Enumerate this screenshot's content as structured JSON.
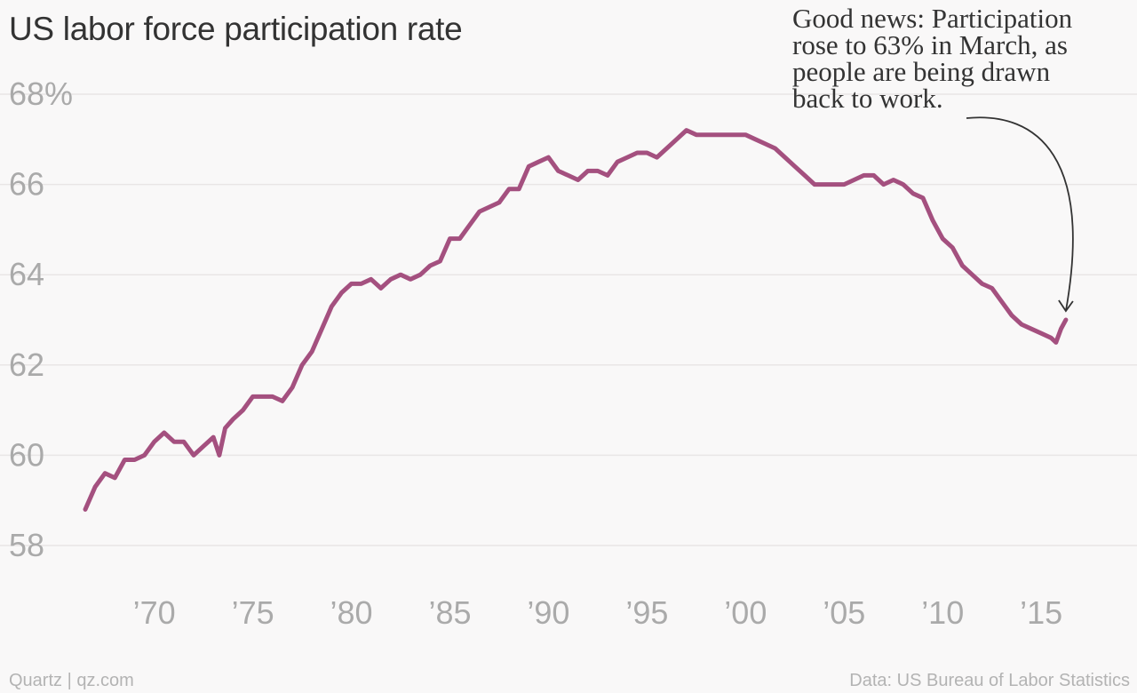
{
  "title": "US labor force participation rate",
  "annotation": {
    "lines": [
      "Good news: Participation",
      "rose to 63% in March, as",
      "people are being drawn",
      "back to work."
    ]
  },
  "footer": {
    "left": "Quartz | qz.com",
    "right": "Data: US Bureau of Labor Statistics"
  },
  "colors": {
    "line": "#a4507f",
    "grid": "#e9e6e6",
    "tick": "#aaaaaa",
    "text": "#333333",
    "footer": "#b3b3b3",
    "background": "#f9f8f8"
  },
  "chart_data": {
    "type": "line",
    "title": "US labor force participation rate",
    "xlabel": "",
    "ylabel": "",
    "xlim": [
      1966.5,
      2016.75
    ],
    "ylim": [
      58,
      68
    ],
    "grid": true,
    "y_ticks": [
      {
        "value": 68,
        "label": "68%"
      },
      {
        "value": 66,
        "label": "66"
      },
      {
        "value": 64,
        "label": "64"
      },
      {
        "value": 62,
        "label": "62"
      },
      {
        "value": 60,
        "label": "60"
      },
      {
        "value": 58,
        "label": "58"
      }
    ],
    "x_ticks": [
      {
        "value": 1970,
        "label": "’70"
      },
      {
        "value": 1975,
        "label": "’75"
      },
      {
        "value": 1980,
        "label": "’80"
      },
      {
        "value": 1985,
        "label": "’85"
      },
      {
        "value": 1990,
        "label": "’90"
      },
      {
        "value": 1995,
        "label": "’95"
      },
      {
        "value": 2000,
        "label": "’00"
      },
      {
        "value": 2005,
        "label": "’05"
      },
      {
        "value": 2010,
        "label": "’10"
      },
      {
        "value": 2015,
        "label": "’15"
      }
    ],
    "series": [
      {
        "x": [
          1966.5,
          1967,
          1967.5,
          1968,
          1968.5,
          1969,
          1969.5,
          1970,
          1970.5,
          1971,
          1971.5,
          1972,
          1972.5,
          1973,
          1973.3,
          1973.6,
          1974,
          1974.5,
          1975,
          1975.5,
          1976,
          1976.5,
          1977,
          1977.5,
          1978,
          1978.5,
          1979,
          1979.5,
          1980,
          1980.5,
          1981,
          1981.5,
          1982,
          1982.5,
          1983,
          1983.5,
          1984,
          1984.5,
          1985,
          1985.5,
          1986,
          1986.5,
          1987,
          1987.5,
          1988,
          1988.5,
          1989,
          1989.5,
          1990,
          1990.5,
          1991,
          1991.5,
          1992,
          1992.5,
          1993,
          1993.5,
          1994,
          1994.5,
          1995,
          1995.5,
          1996,
          1996.5,
          1997,
          1997.5,
          1998,
          1998.5,
          1999,
          1999.5,
          2000,
          2000.5,
          2001,
          2001.5,
          2002,
          2002.5,
          2003,
          2003.5,
          2004,
          2004.5,
          2005,
          2005.5,
          2006,
          2006.5,
          2007,
          2007.5,
          2008,
          2008.5,
          2009,
          2009.5,
          2010,
          2010.5,
          2011,
          2011.5,
          2012,
          2012.5,
          2013,
          2013.5,
          2014,
          2014.5,
          2015,
          2015.5,
          2015.75,
          2016,
          2016.25
        ],
        "values": [
          58.8,
          59.3,
          59.6,
          59.5,
          59.9,
          59.9,
          60.0,
          60.3,
          60.5,
          60.3,
          60.3,
          60.0,
          60.2,
          60.4,
          60.0,
          60.6,
          60.8,
          61.0,
          61.3,
          61.3,
          61.3,
          61.2,
          61.5,
          62.0,
          62.3,
          62.8,
          63.3,
          63.6,
          63.8,
          63.8,
          63.9,
          63.7,
          63.9,
          64.0,
          63.9,
          64.0,
          64.2,
          64.3,
          64.8,
          64.8,
          65.1,
          65.4,
          65.5,
          65.6,
          65.9,
          65.9,
          66.4,
          66.5,
          66.6,
          66.3,
          66.2,
          66.1,
          66.3,
          66.3,
          66.2,
          66.5,
          66.6,
          66.7,
          66.7,
          66.6,
          66.8,
          67.0,
          67.2,
          67.1,
          67.1,
          67.1,
          67.1,
          67.1,
          67.1,
          67.0,
          66.9,
          66.8,
          66.6,
          66.4,
          66.2,
          66.0,
          66.0,
          66.0,
          66.0,
          66.1,
          66.2,
          66.2,
          66.0,
          66.1,
          66.0,
          65.8,
          65.7,
          65.2,
          64.8,
          64.6,
          64.2,
          64.0,
          63.8,
          63.7,
          63.4,
          63.1,
          62.9,
          62.8,
          62.7,
          62.6,
          62.5,
          62.8,
          63.0
        ]
      }
    ],
    "annotations": [
      {
        "text": "Good news: Participation rose to 63% in March, as people are being drawn back to work.",
        "x": 2016.25,
        "y": 63.0
      }
    ]
  }
}
